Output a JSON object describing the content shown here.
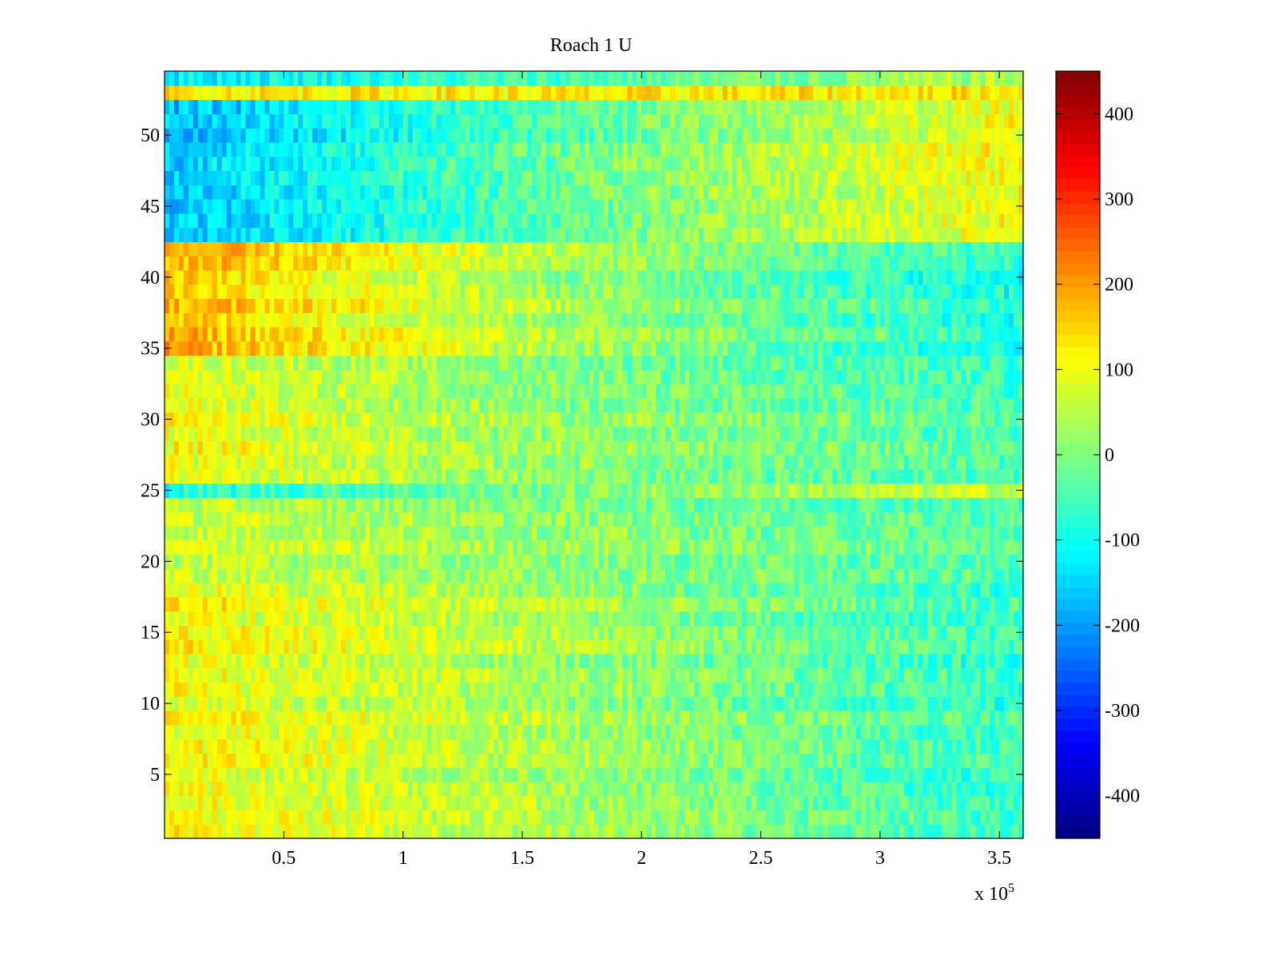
{
  "chart_data": {
    "type": "heatmap",
    "title": "Roach 1 U",
    "xlabel": "",
    "ylabel": "",
    "x_multiplier": {
      "base": "x 10",
      "exponent": "5"
    },
    "xlim": [
      0,
      3.6
    ],
    "ylim": [
      0.5,
      54.5
    ],
    "x_ticks": [
      0.5,
      1,
      1.5,
      2,
      2.5,
      3,
      3.5
    ],
    "x_tick_labels": [
      "0.5",
      "1",
      "1.5",
      "2",
      "2.5",
      "3",
      "3.5"
    ],
    "y_ticks": [
      5,
      10,
      15,
      20,
      25,
      30,
      35,
      40,
      45,
      50
    ],
    "y_tick_labels": [
      "5",
      "10",
      "15",
      "20",
      "25",
      "30",
      "35",
      "40",
      "45",
      "50"
    ],
    "colorbar": {
      "colormap": "jet",
      "clim": [
        -450,
        450
      ],
      "ticks": [
        -400,
        -300,
        -200,
        -100,
        0,
        100,
        200,
        300,
        400
      ],
      "tick_labels": [
        "-400",
        "-300",
        "-200",
        "-100",
        "0",
        "100",
        "200",
        "300",
        "400"
      ]
    },
    "rows": 54,
    "row_segments_note": "approximate mean value of each row band at x = 0, 1.5, 3.6 (x10^5)",
    "row_bands": [
      {
        "rows": [
          1,
          18
        ],
        "values": [
          110,
          40,
          -70
        ]
      },
      {
        "rows": [
          19,
          24
        ],
        "values": [
          70,
          20,
          -40
        ]
      },
      {
        "rows": [
          25,
          25
        ],
        "values": [
          -70,
          10,
          90
        ]
      },
      {
        "rows": [
          26,
          34
        ],
        "values": [
          100,
          20,
          -50
        ]
      },
      {
        "rows": [
          35,
          35
        ],
        "values": [
          180,
          40,
          -130
        ]
      },
      {
        "rows": [
          36,
          42
        ],
        "values": [
          170,
          40,
          -90
        ]
      },
      {
        "rows": [
          43,
          52
        ],
        "values": [
          -170,
          -40,
          110
        ]
      },
      {
        "rows": [
          53,
          53
        ],
        "values": [
          120,
          110,
          120
        ]
      },
      {
        "rows": [
          54,
          54
        ],
        "values": [
          -110,
          -40,
          60
        ]
      }
    ]
  }
}
